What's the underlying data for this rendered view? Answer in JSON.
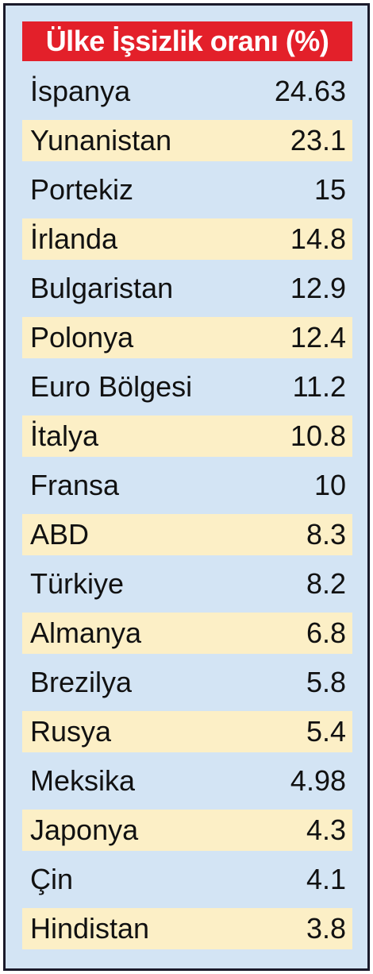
{
  "header": {
    "title": "Ülke İşsizlik oranı (%)"
  },
  "table": {
    "rows": [
      [
        "İspanya",
        24.63
      ],
      [
        "Yunanistan",
        23.1
      ],
      [
        "Portekiz",
        15
      ],
      [
        "İrlanda",
        14.8
      ],
      [
        "Bulgaristan",
        12.9
      ],
      [
        "Polonya",
        12.4
      ],
      [
        "Euro Bölgesi",
        11.2
      ],
      [
        "İtalya",
        10.8
      ],
      [
        "Fransa",
        10
      ],
      [
        "ABD",
        8.3
      ],
      [
        "Türkiye",
        8.2
      ],
      [
        "Almanya",
        6.8
      ],
      [
        "Brezilya",
        5.8
      ],
      [
        "Rusya",
        5.4
      ],
      [
        "Meksika",
        4.98
      ],
      [
        "Japonya",
        4.3
      ],
      [
        "Çin",
        4.1
      ],
      [
        "Hindistan",
        3.8
      ]
    ]
  }
}
